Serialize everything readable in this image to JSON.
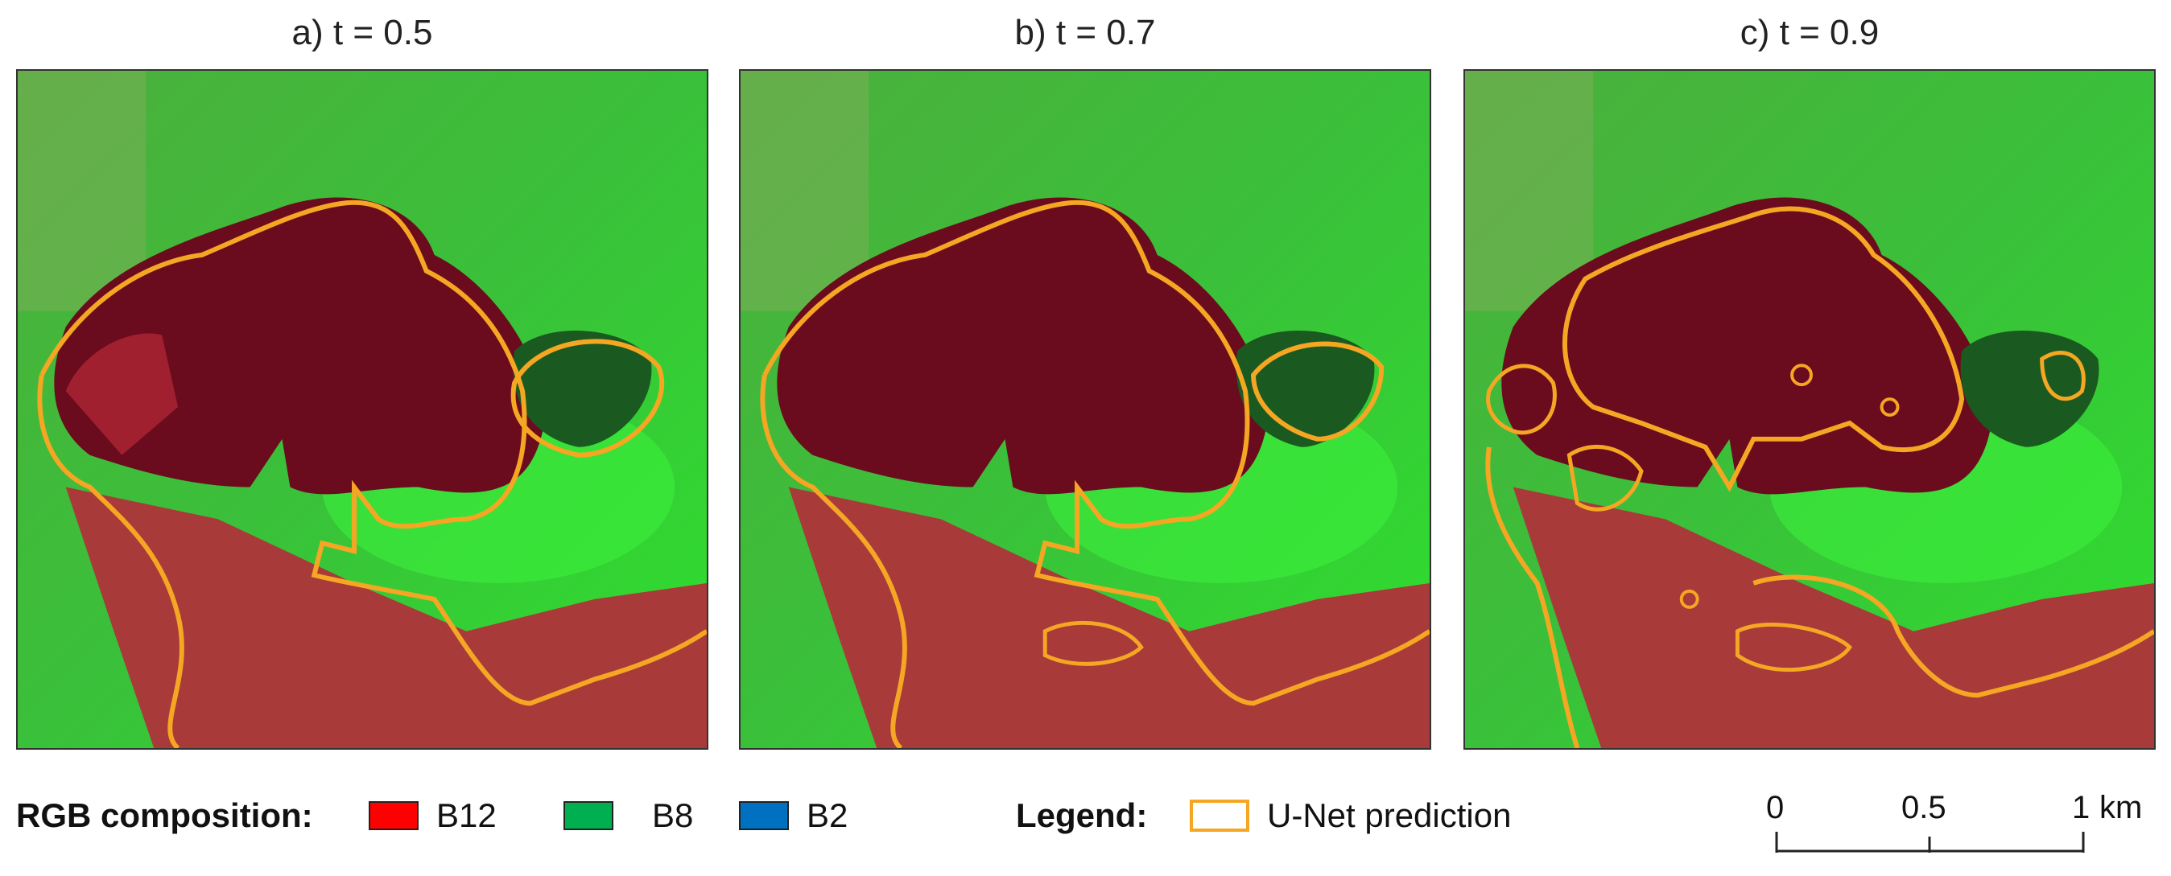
{
  "panels": [
    {
      "label": "a) t = 0.5"
    },
    {
      "label": "b) t = 0.7"
    },
    {
      "label": "c) t = 0.9"
    }
  ],
  "rgb_composition": {
    "title": "RGB composition:",
    "bands": [
      {
        "label": "B12",
        "color": "#ff0000"
      },
      {
        "label": "B8",
        "color": "#00b050"
      },
      {
        "label": "B2",
        "color": "#0070c0"
      }
    ]
  },
  "legend": {
    "title": "Legend:",
    "item_label": "U-Net prediction",
    "color": "#f5a623"
  },
  "scale_bar": {
    "ticks": [
      "0",
      "0.5",
      "1"
    ],
    "unit": "km"
  }
}
